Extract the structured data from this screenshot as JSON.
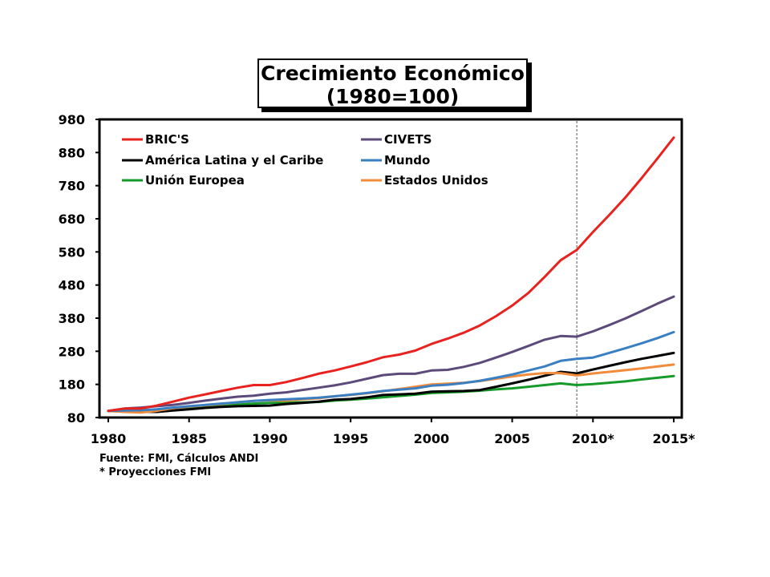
{
  "chart_data": {
    "type": "line",
    "title_line1": "Crecimiento Económico",
    "title_line2": "(1980=100)",
    "xlabel": "",
    "ylabel": "",
    "xlim": [
      1980,
      2015
    ],
    "ylim": [
      80,
      980
    ],
    "y_ticks": [
      80,
      180,
      280,
      380,
      480,
      580,
      680,
      780,
      880,
      980
    ],
    "x_tick_values": [
      1980,
      1985,
      1990,
      1995,
      2000,
      2005,
      2010,
      2015
    ],
    "x_tick_labels": [
      "1980",
      "1985",
      "1990",
      "1995",
      "2000",
      "2005",
      "2010*",
      "2015*"
    ],
    "vline_x": 2009,
    "grid": false,
    "legend_placement": "top-left",
    "x": [
      1980,
      1981,
      1982,
      1983,
      1984,
      1985,
      1986,
      1987,
      1988,
      1989,
      1990,
      1991,
      1992,
      1993,
      1994,
      1995,
      1996,
      1997,
      1998,
      1999,
      2000,
      2001,
      2002,
      2003,
      2004,
      2005,
      2006,
      2007,
      2008,
      2009,
      2010,
      2011,
      2012,
      2013,
      2014,
      2015
    ],
    "series": [
      {
        "name": "BRIC'S",
        "color": "#e8231f",
        "values": [
          100,
          107,
          107,
          116,
          128,
          140,
          150,
          160,
          170,
          178,
          178,
          187,
          199,
          212,
          222,
          234,
          247,
          262,
          270,
          282,
          302,
          318,
          336,
          358,
          386,
          418,
          456,
          504,
          555,
          586,
          640,
          691,
          744,
          802,
          863,
          925
        ]
      },
      {
        "name": "América Latina y el Caribe",
        "color": "#000000",
        "values": [
          100,
          101,
          98,
          97,
          101,
          105,
          109,
          112,
          114,
          115,
          116,
          121,
          124,
          128,
          134,
          136,
          141,
          148,
          150,
          152,
          158,
          159,
          160,
          163,
          173,
          183,
          194,
          206,
          218,
          213,
          225,
          236,
          247,
          257,
          266,
          275
        ]
      },
      {
        "name": "Unión Europea",
        "color": "#169b2a",
        "values": [
          100,
          100,
          101,
          103,
          106,
          109,
          112,
          115,
          119,
          122,
          124,
          125,
          126,
          127,
          131,
          134,
          137,
          141,
          145,
          149,
          154,
          156,
          158,
          161,
          165,
          168,
          173,
          178,
          183,
          178,
          181,
          185,
          189,
          195,
          200,
          205
        ]
      },
      {
        "name": "CIVETS",
        "color": "#5c4a7a",
        "values": [
          100,
          107,
          110,
          114,
          118,
          124,
          131,
          137,
          143,
          146,
          152,
          156,
          163,
          170,
          177,
          186,
          197,
          208,
          212,
          212,
          222,
          224,
          233,
          245,
          261,
          278,
          296,
          315,
          326,
          324,
          340,
          359,
          379,
          401,
          424,
          445
        ]
      },
      {
        "name": "Mundo",
        "color": "#3a7fc2",
        "values": [
          100,
          101,
          102,
          105,
          110,
          114,
          118,
          122,
          126,
          130,
          133,
          135,
          137,
          140,
          144,
          149,
          154,
          160,
          164,
          168,
          176,
          179,
          184,
          191,
          200,
          210,
          222,
          234,
          251,
          257,
          261,
          275,
          289,
          304,
          320,
          338
        ]
      },
      {
        "name": "Estados Unidos",
        "color": "#f08c3c",
        "values": [
          100,
          97,
          95,
          100,
          108,
          113,
          117,
          121,
          126,
          130,
          132,
          131,
          135,
          138,
          144,
          148,
          153,
          159,
          166,
          173,
          180,
          182,
          185,
          190,
          197,
          204,
          210,
          214,
          214,
          207,
          213,
          218,
          223,
          228,
          234,
          240
        ]
      }
    ]
  },
  "source": {
    "line1": "Fuente: FMI, Cálculos ANDI",
    "line2": "* Proyecciones FMI"
  }
}
